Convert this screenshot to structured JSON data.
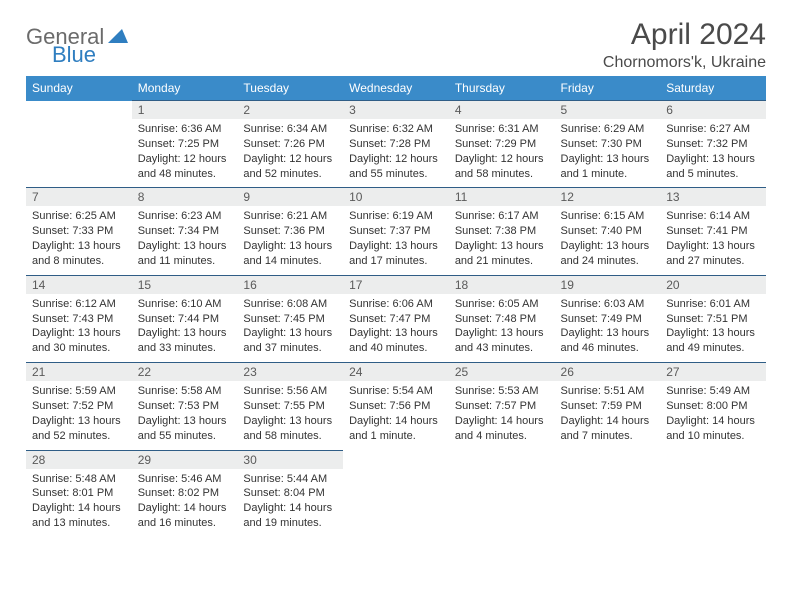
{
  "brand": {
    "part1": "General",
    "part2": "Blue"
  },
  "title": "April 2024",
  "location": "Chornomors'k, Ukraine",
  "colors": {
    "header_bg": "#3a8bc9",
    "header_text": "#ffffff",
    "daynum_bg": "#eceded",
    "border_top": "#2f5d86",
    "text": "#333333",
    "logo_gray": "#6b6b6b",
    "logo_blue": "#2f7ec0"
  },
  "weekdays": [
    "Sunday",
    "Monday",
    "Tuesday",
    "Wednesday",
    "Thursday",
    "Friday",
    "Saturday"
  ],
  "weeks": [
    {
      "nums": [
        "",
        "1",
        "2",
        "3",
        "4",
        "5",
        "6"
      ],
      "cells": [
        null,
        {
          "sunrise": "Sunrise: 6:36 AM",
          "sunset": "Sunset: 7:25 PM",
          "day1": "Daylight: 12 hours",
          "day2": "and 48 minutes."
        },
        {
          "sunrise": "Sunrise: 6:34 AM",
          "sunset": "Sunset: 7:26 PM",
          "day1": "Daylight: 12 hours",
          "day2": "and 52 minutes."
        },
        {
          "sunrise": "Sunrise: 6:32 AM",
          "sunset": "Sunset: 7:28 PM",
          "day1": "Daylight: 12 hours",
          "day2": "and 55 minutes."
        },
        {
          "sunrise": "Sunrise: 6:31 AM",
          "sunset": "Sunset: 7:29 PM",
          "day1": "Daylight: 12 hours",
          "day2": "and 58 minutes."
        },
        {
          "sunrise": "Sunrise: 6:29 AM",
          "sunset": "Sunset: 7:30 PM",
          "day1": "Daylight: 13 hours",
          "day2": "and 1 minute."
        },
        {
          "sunrise": "Sunrise: 6:27 AM",
          "sunset": "Sunset: 7:32 PM",
          "day1": "Daylight: 13 hours",
          "day2": "and 5 minutes."
        }
      ]
    },
    {
      "nums": [
        "7",
        "8",
        "9",
        "10",
        "11",
        "12",
        "13"
      ],
      "cells": [
        {
          "sunrise": "Sunrise: 6:25 AM",
          "sunset": "Sunset: 7:33 PM",
          "day1": "Daylight: 13 hours",
          "day2": "and 8 minutes."
        },
        {
          "sunrise": "Sunrise: 6:23 AM",
          "sunset": "Sunset: 7:34 PM",
          "day1": "Daylight: 13 hours",
          "day2": "and 11 minutes."
        },
        {
          "sunrise": "Sunrise: 6:21 AM",
          "sunset": "Sunset: 7:36 PM",
          "day1": "Daylight: 13 hours",
          "day2": "and 14 minutes."
        },
        {
          "sunrise": "Sunrise: 6:19 AM",
          "sunset": "Sunset: 7:37 PM",
          "day1": "Daylight: 13 hours",
          "day2": "and 17 minutes."
        },
        {
          "sunrise": "Sunrise: 6:17 AM",
          "sunset": "Sunset: 7:38 PM",
          "day1": "Daylight: 13 hours",
          "day2": "and 21 minutes."
        },
        {
          "sunrise": "Sunrise: 6:15 AM",
          "sunset": "Sunset: 7:40 PM",
          "day1": "Daylight: 13 hours",
          "day2": "and 24 minutes."
        },
        {
          "sunrise": "Sunrise: 6:14 AM",
          "sunset": "Sunset: 7:41 PM",
          "day1": "Daylight: 13 hours",
          "day2": "and 27 minutes."
        }
      ]
    },
    {
      "nums": [
        "14",
        "15",
        "16",
        "17",
        "18",
        "19",
        "20"
      ],
      "cells": [
        {
          "sunrise": "Sunrise: 6:12 AM",
          "sunset": "Sunset: 7:43 PM",
          "day1": "Daylight: 13 hours",
          "day2": "and 30 minutes."
        },
        {
          "sunrise": "Sunrise: 6:10 AM",
          "sunset": "Sunset: 7:44 PM",
          "day1": "Daylight: 13 hours",
          "day2": "and 33 minutes."
        },
        {
          "sunrise": "Sunrise: 6:08 AM",
          "sunset": "Sunset: 7:45 PM",
          "day1": "Daylight: 13 hours",
          "day2": "and 37 minutes."
        },
        {
          "sunrise": "Sunrise: 6:06 AM",
          "sunset": "Sunset: 7:47 PM",
          "day1": "Daylight: 13 hours",
          "day2": "and 40 minutes."
        },
        {
          "sunrise": "Sunrise: 6:05 AM",
          "sunset": "Sunset: 7:48 PM",
          "day1": "Daylight: 13 hours",
          "day2": "and 43 minutes."
        },
        {
          "sunrise": "Sunrise: 6:03 AM",
          "sunset": "Sunset: 7:49 PM",
          "day1": "Daylight: 13 hours",
          "day2": "and 46 minutes."
        },
        {
          "sunrise": "Sunrise: 6:01 AM",
          "sunset": "Sunset: 7:51 PM",
          "day1": "Daylight: 13 hours",
          "day2": "and 49 minutes."
        }
      ]
    },
    {
      "nums": [
        "21",
        "22",
        "23",
        "24",
        "25",
        "26",
        "27"
      ],
      "cells": [
        {
          "sunrise": "Sunrise: 5:59 AM",
          "sunset": "Sunset: 7:52 PM",
          "day1": "Daylight: 13 hours",
          "day2": "and 52 minutes."
        },
        {
          "sunrise": "Sunrise: 5:58 AM",
          "sunset": "Sunset: 7:53 PM",
          "day1": "Daylight: 13 hours",
          "day2": "and 55 minutes."
        },
        {
          "sunrise": "Sunrise: 5:56 AM",
          "sunset": "Sunset: 7:55 PM",
          "day1": "Daylight: 13 hours",
          "day2": "and 58 minutes."
        },
        {
          "sunrise": "Sunrise: 5:54 AM",
          "sunset": "Sunset: 7:56 PM",
          "day1": "Daylight: 14 hours",
          "day2": "and 1 minute."
        },
        {
          "sunrise": "Sunrise: 5:53 AM",
          "sunset": "Sunset: 7:57 PM",
          "day1": "Daylight: 14 hours",
          "day2": "and 4 minutes."
        },
        {
          "sunrise": "Sunrise: 5:51 AM",
          "sunset": "Sunset: 7:59 PM",
          "day1": "Daylight: 14 hours",
          "day2": "and 7 minutes."
        },
        {
          "sunrise": "Sunrise: 5:49 AM",
          "sunset": "Sunset: 8:00 PM",
          "day1": "Daylight: 14 hours",
          "day2": "and 10 minutes."
        }
      ]
    },
    {
      "nums": [
        "28",
        "29",
        "30",
        "",
        "",
        "",
        ""
      ],
      "cells": [
        {
          "sunrise": "Sunrise: 5:48 AM",
          "sunset": "Sunset: 8:01 PM",
          "day1": "Daylight: 14 hours",
          "day2": "and 13 minutes."
        },
        {
          "sunrise": "Sunrise: 5:46 AM",
          "sunset": "Sunset: 8:02 PM",
          "day1": "Daylight: 14 hours",
          "day2": "and 16 minutes."
        },
        {
          "sunrise": "Sunrise: 5:44 AM",
          "sunset": "Sunset: 8:04 PM",
          "day1": "Daylight: 14 hours",
          "day2": "and 19 minutes."
        },
        null,
        null,
        null,
        null
      ]
    }
  ]
}
